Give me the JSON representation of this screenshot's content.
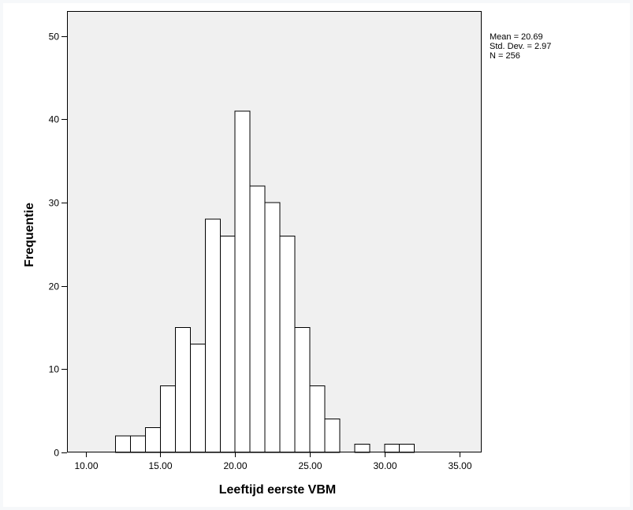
{
  "chart_data": {
    "type": "bar",
    "subtype": "histogram",
    "xlabel": "Leeftijd eerste VBM",
    "ylabel": "Frequentie",
    "xlim": [
      8.75,
      36.5
    ],
    "ylim": [
      0,
      53
    ],
    "x_ticks": [
      {
        "value": 10,
        "label": "10.00"
      },
      {
        "value": 15,
        "label": "15.00"
      },
      {
        "value": 20,
        "label": "20.00"
      },
      {
        "value": 25,
        "label": "25.00"
      },
      {
        "value": 30,
        "label": "30.00"
      },
      {
        "value": 35,
        "label": "35.00"
      }
    ],
    "y_ticks": [
      {
        "value": 0,
        "label": "0"
      },
      {
        "value": 10,
        "label": "10"
      },
      {
        "value": 20,
        "label": "20"
      },
      {
        "value": 30,
        "label": "30"
      },
      {
        "value": 40,
        "label": "40"
      },
      {
        "value": 50,
        "label": "50"
      }
    ],
    "bin_width": 1,
    "bins": [
      {
        "start": 12,
        "end": 13,
        "count": 2
      },
      {
        "start": 13,
        "end": 14,
        "count": 2
      },
      {
        "start": 14,
        "end": 15,
        "count": 3
      },
      {
        "start": 15,
        "end": 16,
        "count": 8
      },
      {
        "start": 16,
        "end": 17,
        "count": 15
      },
      {
        "start": 17,
        "end": 18,
        "count": 13
      },
      {
        "start": 18,
        "end": 19,
        "count": 28
      },
      {
        "start": 19,
        "end": 20,
        "count": 26
      },
      {
        "start": 20,
        "end": 21,
        "count": 41
      },
      {
        "start": 21,
        "end": 22,
        "count": 32
      },
      {
        "start": 22,
        "end": 23,
        "count": 30
      },
      {
        "start": 23,
        "end": 24,
        "count": 26
      },
      {
        "start": 24,
        "end": 25,
        "count": 15
      },
      {
        "start": 25,
        "end": 26,
        "count": 8
      },
      {
        "start": 26,
        "end": 27,
        "count": 4
      },
      {
        "start": 27,
        "end": 28,
        "count": 0
      },
      {
        "start": 28,
        "end": 29,
        "count": 1
      },
      {
        "start": 29,
        "end": 30,
        "count": 0
      },
      {
        "start": 30,
        "end": 31,
        "count": 1
      },
      {
        "start": 31,
        "end": 32,
        "count": 1
      }
    ],
    "stats": {
      "mean": "Mean = 20.69",
      "std_dev": "Std. Dev. = 2.97",
      "n": "N = 256"
    },
    "colors": {
      "plot_background": "#f0f0f0",
      "bar_fill": "#ffffff",
      "bar_stroke": "#000000"
    }
  }
}
